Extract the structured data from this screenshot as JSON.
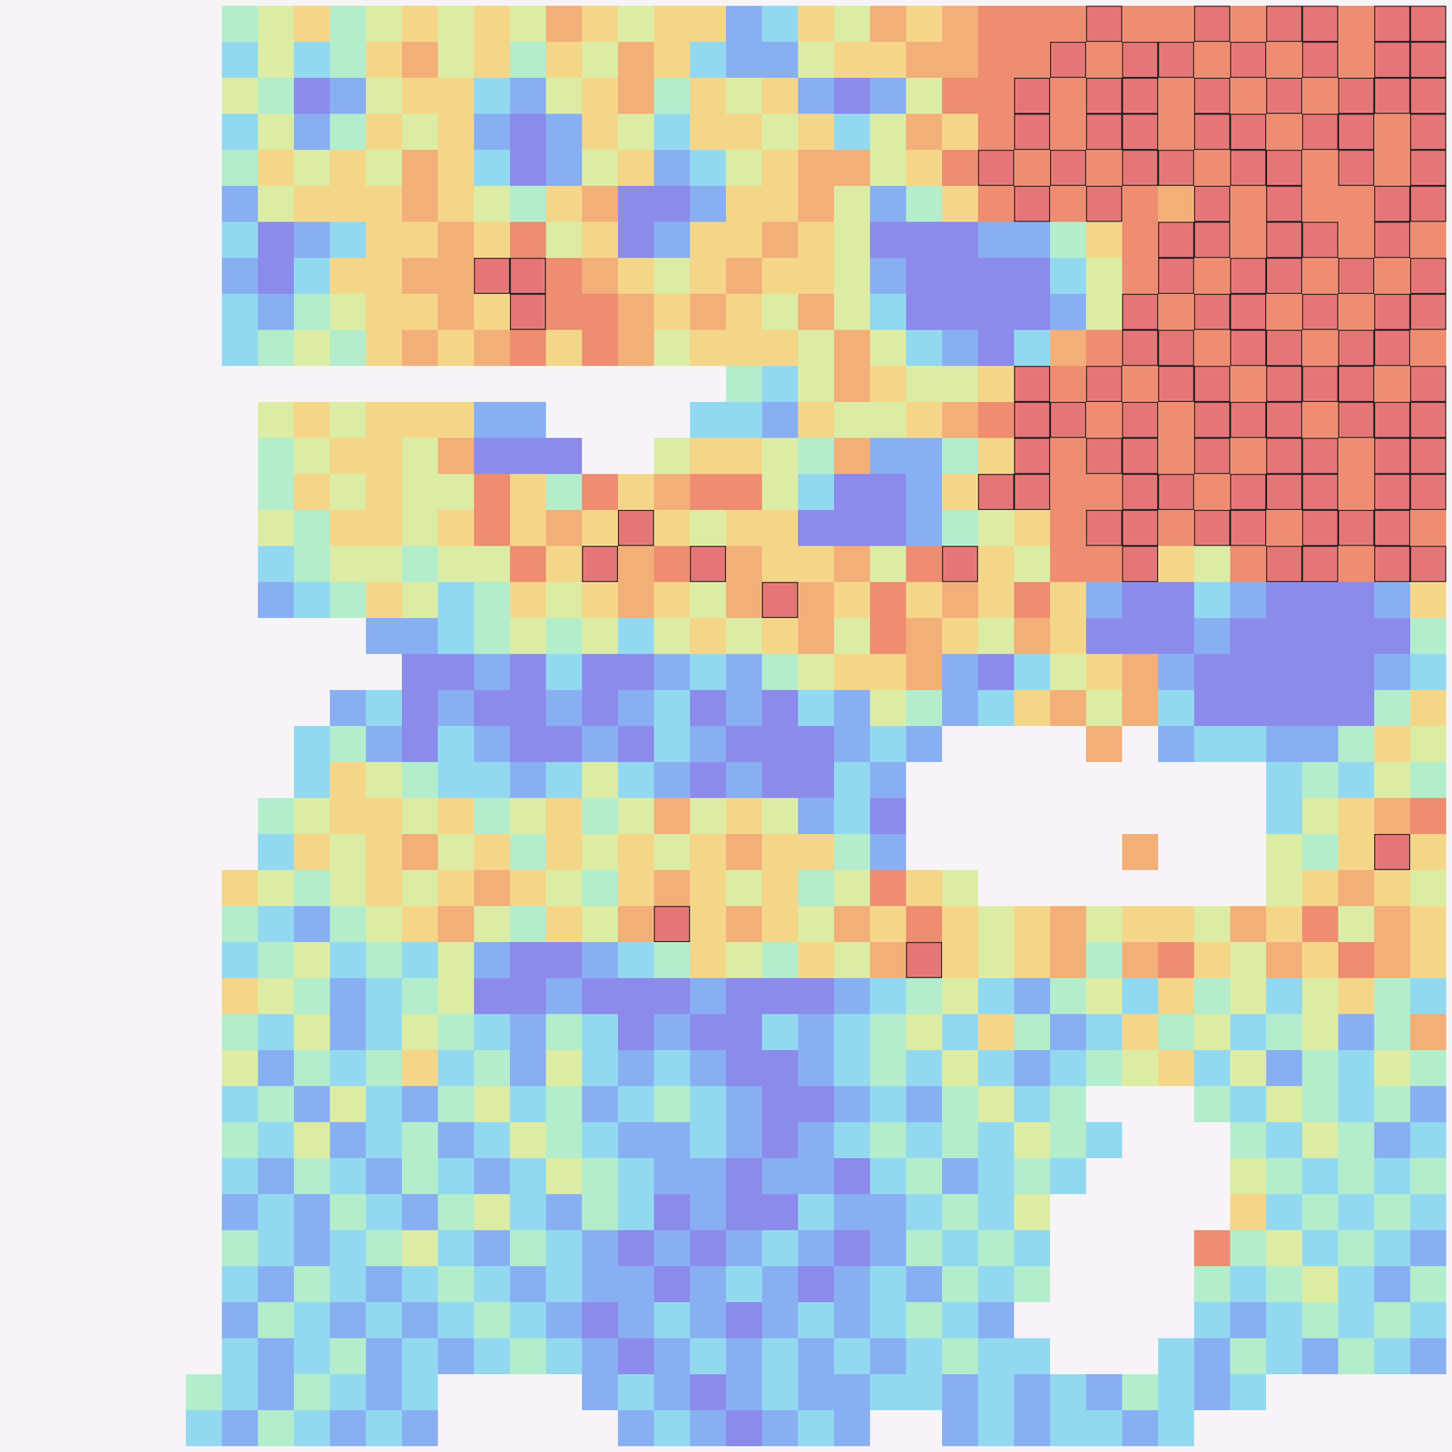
{
  "chart_data": {
    "type": "heatmap",
    "tick_labels": false,
    "cells": [
      [
        null,
        null,
        null,
        null,
        null,
        null,
        4,
        5,
        6,
        4,
        5,
        6,
        5,
        6,
        5,
        7,
        6,
        5,
        6,
        6,
        2,
        3,
        6,
        5,
        7,
        6,
        7,
        8,
        8,
        8,
        9,
        8,
        8,
        9,
        8,
        9,
        9,
        8,
        9,
        9
      ],
      [
        null,
        null,
        null,
        null,
        null,
        null,
        3,
        5,
        3,
        4,
        6,
        7,
        5,
        6,
        4,
        6,
        5,
        7,
        6,
        3,
        2,
        2,
        5,
        6,
        6,
        7,
        7,
        8,
        8,
        9,
        8,
        9,
        9,
        8,
        9,
        8,
        9,
        8,
        9,
        9
      ],
      [
        null,
        null,
        null,
        null,
        null,
        null,
        5,
        4,
        1,
        2,
        5,
        6,
        6,
        3,
        2,
        5,
        6,
        7,
        4,
        6,
        5,
        6,
        2,
        1,
        2,
        5,
        8,
        8,
        9,
        8,
        9,
        9,
        8,
        9,
        8,
        9,
        8,
        9,
        9,
        9
      ],
      [
        null,
        null,
        null,
        null,
        null,
        null,
        3,
        5,
        2,
        4,
        6,
        5,
        6,
        2,
        1,
        2,
        6,
        5,
        3,
        6,
        6,
        5,
        6,
        3,
        5,
        7,
        6,
        8,
        9,
        8,
        9,
        9,
        8,
        9,
        9,
        8,
        9,
        9,
        8,
        9
      ],
      [
        null,
        null,
        null,
        null,
        null,
        null,
        4,
        6,
        5,
        6,
        5,
        7,
        6,
        3,
        1,
        2,
        5,
        6,
        2,
        3,
        5,
        6,
        7,
        7,
        5,
        6,
        8,
        9,
        8,
        9,
        8,
        9,
        9,
        8,
        9,
        9,
        8,
        9,
        8,
        9
      ],
      [
        null,
        null,
        null,
        null,
        null,
        null,
        2,
        5,
        6,
        6,
        6,
        7,
        6,
        5,
        4,
        6,
        7,
        1,
        1,
        2,
        6,
        6,
        7,
        5,
        2,
        4,
        6,
        8,
        9,
        8,
        9,
        8,
        7,
        9,
        8,
        9,
        8,
        8,
        9,
        9
      ],
      [
        null,
        null,
        null,
        null,
        null,
        null,
        3,
        1,
        2,
        3,
        6,
        6,
        7,
        6,
        8,
        5,
        6,
        1,
        2,
        6,
        6,
        7,
        6,
        5,
        1,
        1,
        1,
        2,
        2,
        4,
        6,
        8,
        9,
        9,
        8,
        9,
        9,
        8,
        9,
        8
      ],
      [
        null,
        null,
        null,
        null,
        null,
        null,
        2,
        1,
        3,
        6,
        6,
        7,
        7,
        9,
        9,
        8,
        7,
        6,
        5,
        6,
        7,
        6,
        6,
        5,
        2,
        1,
        1,
        1,
        1,
        3,
        5,
        8,
        9,
        8,
        9,
        9,
        8,
        9,
        8,
        9
      ],
      [
        null,
        null,
        null,
        null,
        null,
        null,
        3,
        2,
        4,
        5,
        6,
        6,
        7,
        6,
        9,
        8,
        8,
        7,
        6,
        7,
        6,
        5,
        7,
        5,
        3,
        1,
        1,
        1,
        1,
        2,
        5,
        9,
        8,
        9,
        9,
        8,
        9,
        8,
        9,
        9
      ],
      [
        null,
        null,
        null,
        null,
        null,
        null,
        3,
        4,
        5,
        4,
        6,
        7,
        6,
        7,
        8,
        6,
        8,
        7,
        5,
        6,
        6,
        6,
        5,
        7,
        5,
        3,
        2,
        1,
        3,
        7,
        8,
        9,
        9,
        8,
        9,
        9,
        8,
        9,
        9,
        8
      ],
      [
        null,
        null,
        null,
        null,
        null,
        null,
        null,
        null,
        null,
        null,
        null,
        null,
        null,
        null,
        null,
        null,
        null,
        null,
        null,
        null,
        4,
        3,
        5,
        7,
        6,
        5,
        5,
        6,
        9,
        8,
        9,
        8,
        9,
        9,
        8,
        9,
        9,
        9,
        8,
        9
      ],
      [
        null,
        null,
        null,
        null,
        null,
        null,
        null,
        5,
        6,
        5,
        6,
        6,
        6,
        2,
        2,
        null,
        null,
        null,
        null,
        3,
        3,
        2,
        6,
        5,
        5,
        6,
        7,
        8,
        9,
        9,
        8,
        9,
        8,
        9,
        9,
        9,
        8,
        9,
        9,
        9
      ],
      [
        null,
        null,
        null,
        null,
        null,
        null,
        null,
        4,
        5,
        6,
        6,
        5,
        7,
        1,
        1,
        1,
        null,
        null,
        5,
        6,
        6,
        5,
        4,
        7,
        2,
        2,
        4,
        6,
        9,
        8,
        9,
        9,
        8,
        9,
        8,
        9,
        9,
        8,
        9,
        9
      ],
      [
        null,
        null,
        null,
        null,
        null,
        null,
        null,
        4,
        6,
        5,
        6,
        5,
        5,
        8,
        6,
        4,
        8,
        6,
        7,
        8,
        8,
        5,
        3,
        1,
        1,
        2,
        6,
        9,
        9,
        8,
        8,
        9,
        9,
        8,
        9,
        9,
        9,
        8,
        9,
        9
      ],
      [
        null,
        null,
        null,
        null,
        null,
        null,
        null,
        5,
        4,
        6,
        6,
        5,
        6,
        8,
        6,
        7,
        6,
        9,
        6,
        5,
        6,
        6,
        1,
        1,
        1,
        2,
        4,
        5,
        6,
        8,
        9,
        9,
        8,
        9,
        9,
        8,
        9,
        9,
        9,
        8
      ],
      [
        null,
        null,
        null,
        null,
        null,
        null,
        null,
        3,
        4,
        5,
        5,
        4,
        5,
        5,
        8,
        6,
        9,
        7,
        8,
        9,
        7,
        6,
        6,
        7,
        5,
        8,
        9,
        6,
        5,
        8,
        8,
        9,
        6,
        5,
        8,
        9,
        9,
        8,
        9,
        9
      ],
      [
        null,
        null,
        null,
        null,
        null,
        null,
        null,
        2,
        3,
        4,
        6,
        5,
        3,
        4,
        6,
        5,
        6,
        7,
        6,
        5,
        7,
        9,
        7,
        6,
        8,
        6,
        7,
        6,
        8,
        6,
        2,
        1,
        1,
        3,
        2,
        1,
        1,
        1,
        2,
        6
      ],
      [
        null,
        null,
        null,
        null,
        null,
        null,
        null,
        null,
        null,
        null,
        2,
        2,
        3,
        4,
        5,
        4,
        5,
        3,
        5,
        6,
        5,
        6,
        7,
        5,
        8,
        7,
        6,
        5,
        7,
        6,
        1,
        1,
        1,
        2,
        1,
        1,
        1,
        1,
        1,
        4
      ],
      [
        null,
        null,
        null,
        null,
        null,
        null,
        null,
        null,
        null,
        null,
        null,
        1,
        1,
        2,
        1,
        3,
        1,
        1,
        2,
        3,
        2,
        4,
        5,
        6,
        6,
        7,
        2,
        1,
        3,
        5,
        6,
        7,
        2,
        1,
        1,
        1,
        1,
        1,
        2,
        3
      ],
      [
        null,
        null,
        null,
        null,
        null,
        null,
        null,
        null,
        null,
        2,
        3,
        1,
        2,
        1,
        1,
        2,
        1,
        2,
        3,
        1,
        2,
        1,
        3,
        2,
        5,
        4,
        2,
        3,
        6,
        7,
        5,
        7,
        3,
        1,
        1,
        1,
        1,
        1,
        4,
        6
      ],
      [
        null,
        null,
        null,
        null,
        null,
        null,
        null,
        null,
        3,
        4,
        2,
        1,
        3,
        2,
        1,
        1,
        2,
        1,
        3,
        2,
        1,
        1,
        1,
        2,
        3,
        2,
        null,
        null,
        null,
        null,
        7,
        null,
        2,
        3,
        3,
        2,
        2,
        4,
        6,
        5
      ],
      [
        null,
        null,
        null,
        null,
        null,
        null,
        null,
        null,
        3,
        6,
        5,
        4,
        3,
        3,
        2,
        3,
        5,
        3,
        2,
        1,
        2,
        1,
        1,
        3,
        2,
        null,
        null,
        null,
        null,
        null,
        null,
        null,
        null,
        null,
        null,
        3,
        4,
        3,
        5,
        4
      ],
      [
        null,
        null,
        null,
        null,
        null,
        null,
        null,
        4,
        5,
        6,
        6,
        5,
        6,
        4,
        5,
        6,
        4,
        5,
        7,
        5,
        6,
        5,
        2,
        3,
        1,
        null,
        null,
        null,
        null,
        null,
        null,
        null,
        null,
        null,
        null,
        3,
        5,
        6,
        7,
        8
      ],
      [
        null,
        null,
        null,
        null,
        null,
        null,
        null,
        3,
        6,
        5,
        6,
        7,
        5,
        6,
        4,
        6,
        5,
        6,
        5,
        6,
        7,
        6,
        6,
        4,
        2,
        null,
        null,
        null,
        null,
        null,
        null,
        7,
        null,
        null,
        null,
        5,
        4,
        6,
        9,
        6
      ],
      [
        null,
        null,
        null,
        null,
        null,
        null,
        6,
        5,
        4,
        5,
        6,
        5,
        6,
        7,
        6,
        5,
        4,
        6,
        7,
        6,
        5,
        6,
        4,
        5,
        8,
        6,
        5,
        null,
        null,
        null,
        null,
        null,
        null,
        null,
        null,
        5,
        6,
        7,
        6,
        5
      ],
      [
        null,
        null,
        null,
        null,
        null,
        null,
        4,
        3,
        2,
        4,
        5,
        6,
        7,
        5,
        4,
        6,
        5,
        7,
        9,
        6,
        7,
        6,
        5,
        7,
        6,
        8,
        6,
        5,
        6,
        7,
        5,
        6,
        6,
        5,
        7,
        6,
        8,
        5,
        7,
        6
      ],
      [
        null,
        null,
        null,
        null,
        null,
        null,
        3,
        4,
        5,
        3,
        4,
        3,
        5,
        2,
        1,
        1,
        2,
        3,
        4,
        6,
        5,
        4,
        6,
        5,
        7,
        9,
        6,
        5,
        6,
        7,
        4,
        7,
        8,
        6,
        5,
        7,
        6,
        8,
        7,
        6
      ],
      [
        null,
        null,
        null,
        null,
        null,
        null,
        6,
        5,
        4,
        2,
        3,
        4,
        5,
        1,
        1,
        2,
        1,
        1,
        1,
        2,
        1,
        1,
        1,
        2,
        3,
        4,
        5,
        3,
        2,
        4,
        5,
        3,
        6,
        4,
        5,
        3,
        5,
        6,
        4,
        3
      ],
      [
        null,
        null,
        null,
        null,
        null,
        null,
        4,
        3,
        5,
        2,
        3,
        5,
        4,
        3,
        2,
        4,
        3,
        1,
        2,
        1,
        1,
        3,
        2,
        3,
        4,
        5,
        3,
        6,
        4,
        2,
        3,
        6,
        4,
        5,
        3,
        4,
        5,
        2,
        4,
        7
      ],
      [
        null,
        null,
        null,
        null,
        null,
        null,
        5,
        2,
        4,
        3,
        4,
        6,
        3,
        4,
        2,
        5,
        3,
        2,
        3,
        2,
        1,
        1,
        2,
        3,
        4,
        3,
        5,
        3,
        2,
        3,
        4,
        5,
        6,
        3,
        5,
        2,
        4,
        3,
        5,
        4
      ],
      [
        null,
        null,
        null,
        null,
        null,
        null,
        3,
        4,
        2,
        5,
        3,
        2,
        4,
        5,
        3,
        4,
        2,
        3,
        4,
        3,
        2,
        1,
        1,
        2,
        3,
        2,
        4,
        5,
        3,
        4,
        null,
        null,
        null,
        4,
        3,
        5,
        4,
        3,
        4,
        2
      ],
      [
        null,
        null,
        null,
        null,
        null,
        null,
        4,
        3,
        5,
        2,
        3,
        4,
        2,
        3,
        5,
        4,
        3,
        2,
        2,
        3,
        2,
        1,
        2,
        3,
        4,
        3,
        4,
        3,
        5,
        4,
        3,
        null,
        null,
        null,
        4,
        3,
        5,
        4,
        2,
        3
      ],
      [
        null,
        null,
        null,
        null,
        null,
        null,
        3,
        2,
        4,
        3,
        2,
        4,
        3,
        2,
        3,
        5,
        4,
        3,
        2,
        2,
        1,
        2,
        2,
        1,
        3,
        4,
        2,
        3,
        4,
        3,
        null,
        null,
        null,
        null,
        5,
        4,
        3,
        4,
        3,
        4
      ],
      [
        null,
        null,
        null,
        null,
        null,
        null,
        2,
        3,
        2,
        4,
        3,
        2,
        4,
        5,
        3,
        2,
        4,
        3,
        1,
        2,
        1,
        1,
        3,
        2,
        2,
        3,
        4,
        3,
        5,
        null,
        null,
        null,
        null,
        null,
        6,
        3,
        4,
        3,
        4,
        3
      ],
      [
        null,
        null,
        null,
        null,
        null,
        null,
        4,
        3,
        2,
        3,
        4,
        5,
        3,
        2,
        4,
        3,
        2,
        1,
        2,
        1,
        2,
        3,
        2,
        1,
        2,
        4,
        3,
        4,
        3,
        null,
        null,
        null,
        null,
        8,
        4,
        5,
        3,
        4,
        3,
        2
      ],
      [
        null,
        null,
        null,
        null,
        null,
        null,
        3,
        2,
        4,
        3,
        2,
        3,
        4,
        3,
        2,
        3,
        2,
        2,
        1,
        2,
        3,
        2,
        1,
        2,
        3,
        2,
        4,
        3,
        4,
        null,
        null,
        null,
        null,
        4,
        3,
        4,
        5,
        3,
        2,
        4
      ],
      [
        null,
        null,
        null,
        null,
        null,
        null,
        2,
        4,
        3,
        2,
        3,
        2,
        3,
        4,
        3,
        2,
        1,
        2,
        3,
        2,
        1,
        2,
        3,
        2,
        3,
        4,
        3,
        2,
        null,
        null,
        null,
        null,
        null,
        3,
        2,
        3,
        4,
        3,
        4,
        3
      ],
      [
        null,
        null,
        null,
        null,
        null,
        null,
        3,
        2,
        3,
        4,
        2,
        3,
        2,
        3,
        4,
        3,
        2,
        1,
        2,
        3,
        2,
        3,
        2,
        3,
        2,
        3,
        4,
        3,
        3,
        null,
        null,
        null,
        3,
        2,
        4,
        3,
        2,
        4,
        3,
        2
      ],
      [
        null,
        null,
        null,
        null,
        null,
        4,
        3,
        2,
        4,
        3,
        2,
        3,
        null,
        null,
        null,
        null,
        2,
        3,
        2,
        1,
        2,
        3,
        2,
        2,
        3,
        3,
        2,
        3,
        2,
        3,
        2,
        4,
        3,
        2,
        3,
        null,
        null,
        null,
        null,
        null
      ],
      [
        null,
        null,
        null,
        null,
        null,
        3,
        2,
        4,
        3,
        2,
        3,
        2,
        null,
        null,
        null,
        null,
        null,
        2,
        3,
        2,
        1,
        2,
        3,
        2,
        null,
        null,
        2,
        3,
        2,
        3,
        3,
        2,
        3,
        null,
        null,
        null,
        null,
        null,
        null,
        null
      ]
    ]
  }
}
